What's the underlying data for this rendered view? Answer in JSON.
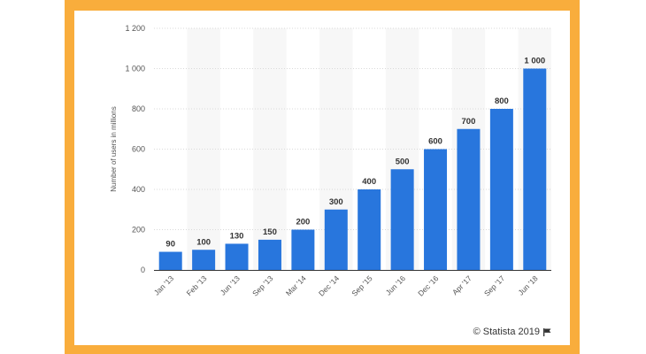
{
  "colors": {
    "frame": "#f9ad3c",
    "bar": "#2876dd",
    "band": "#f7f7f7",
    "grid": "#d9d9d9",
    "axis_text": "#555555",
    "label_text": "#333333"
  },
  "chart_data": {
    "type": "bar",
    "categories": [
      "Jan '13",
      "Feb '13",
      "Jun '13",
      "Sep '13",
      "Mar '14",
      "Dec '14",
      "Sep '15",
      "Jun '16",
      "Dec '16",
      "Apr '17",
      "Sep '17",
      "Jun '18"
    ],
    "values": [
      90,
      100,
      130,
      150,
      200,
      300,
      400,
      500,
      600,
      700,
      800,
      1000
    ],
    "data_labels": [
      "90",
      "100",
      "130",
      "150",
      "200",
      "300",
      "400",
      "500",
      "600",
      "700",
      "800",
      "1 000"
    ],
    "ylabel": "Number of users in millions",
    "ylim": [
      0,
      1200
    ],
    "yticks": [
      0,
      200,
      400,
      600,
      800,
      1000,
      1200
    ],
    "ytick_labels": [
      "0",
      "200",
      "400",
      "600",
      "800",
      "1 000",
      "1 200"
    ],
    "grid": true,
    "alternating_bands": true
  },
  "footer": {
    "copyright": "© Statista 2019",
    "icon": "flag-icon"
  }
}
